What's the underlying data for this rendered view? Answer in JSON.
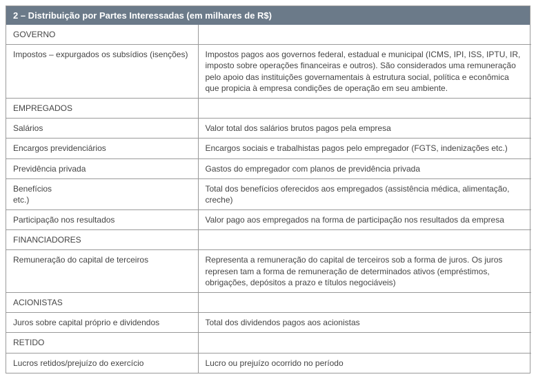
{
  "header": {
    "title": "2 – Distribuição por Partes Interessadas (em milhares de R$)"
  },
  "rows": [
    {
      "left": "GOVERNO",
      "right": ""
    },
    {
      "left": "Impostos – expurgados os subsídios (isenções)",
      "right": "Impostos pagos aos governos federal, estadual e municipal (ICMS, IPI, ISS, IPTU, IR, imposto sobre operações financeiras e outros). São considerados uma remuneração pelo apoio das instituições governamentais à estrutura social, política e econômica que propicia à empresa condições de operação em seu ambiente."
    },
    {
      "left": "EMPREGADOS",
      "right": ""
    },
    {
      "left": "Salários",
      "right": "Valor total dos salários brutos pagos pela empresa"
    },
    {
      "left": "Encargos previdenciários",
      "right": "Encargos sociais e trabalhistas pagos pelo empregador (FGTS, indenizações etc.)"
    },
    {
      "left": "Previdência privada",
      "right": "Gastos do empregador com planos de previdência privada"
    },
    {
      "left": "Benefícios\netc.)",
      "right": "Total dos benefícios oferecidos aos empregados (assistência médica, alimentação, creche)"
    },
    {
      "left": "Participação nos resultados",
      "right": "Valor pago aos empregados na forma de participação nos resultados da empresa"
    },
    {
      "left": "FINANCIADORES",
      "right": ""
    },
    {
      "left": "Remuneração do capital de terceiros",
      "right": "Representa a remuneração do capital de terceiros sob a forma de juros. Os juros represen tam a forma de remuneração de determinados ativos (empréstimos, obrigações, depósitos a prazo e títulos negociáveis)"
    },
    {
      "left": "ACIONISTAS",
      "right": ""
    },
    {
      "left": "Juros sobre capital próprio e dividendos",
      "right": "Total dos dividendos pagos aos acionistas"
    },
    {
      "left": "RETIDO",
      "right": ""
    },
    {
      "left": "Lucros retidos/prejuízo do exercício",
      "right": "Lucro ou prejuízo ocorrido no período"
    }
  ]
}
